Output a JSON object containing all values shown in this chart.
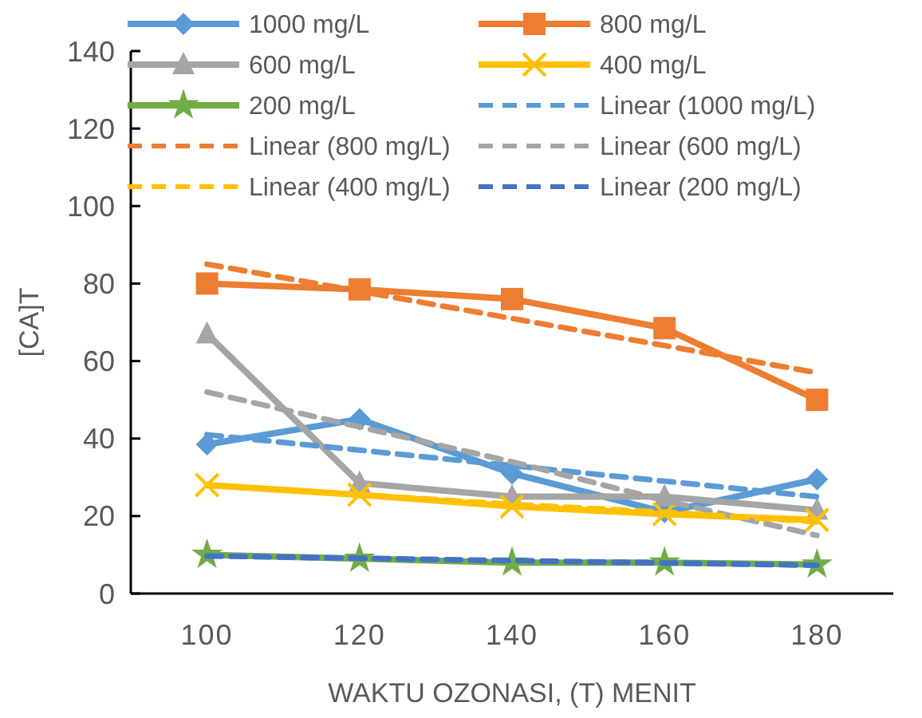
{
  "chart_data": {
    "type": "line",
    "xlabel": "WAKTU OZONASI, (T) MENIT",
    "ylabel": "[CA]T",
    "categories": [
      "100",
      "120",
      "140",
      "160",
      "180"
    ],
    "ylim": [
      0,
      140
    ],
    "yticks": [
      0,
      20,
      40,
      60,
      80,
      100,
      120,
      140
    ],
    "grid": false,
    "legend": "top",
    "series": [
      {
        "name": "1000 mg/L",
        "color": "#5b9bd5",
        "marker": "diamond",
        "line_style": "solid",
        "values": [
          38.5,
          45,
          31,
          21,
          29.5
        ]
      },
      {
        "name": "800 mg/L",
        "color": "#ed7d31",
        "marker": "square",
        "line_style": "solid",
        "values": [
          80,
          78.5,
          76,
          68.5,
          50
        ]
      },
      {
        "name": "600 mg/L",
        "color": "#a5a5a5",
        "marker": "triangle",
        "line_style": "solid",
        "values": [
          67,
          28.5,
          25,
          25,
          21.5
        ]
      },
      {
        "name": "400 mg/L",
        "color": "#ffc000",
        "marker": "cross",
        "line_style": "solid",
        "values": [
          28,
          25.5,
          22.5,
          20.5,
          19
        ]
      },
      {
        "name": "200 mg/L",
        "color": "#70ad47",
        "marker": "star",
        "line_style": "solid",
        "values": [
          10,
          9,
          8,
          8,
          7.5
        ]
      },
      {
        "name": "Linear (1000 mg/L)",
        "color": "#5b9bd5",
        "marker": "none",
        "line_style": "dashed",
        "values": [
          41,
          37,
          33,
          29,
          25
        ]
      },
      {
        "name": "Linear (800 mg/L)",
        "color": "#ed7d31",
        "marker": "none",
        "line_style": "dashed",
        "values": [
          85,
          78,
          71,
          64,
          57
        ]
      },
      {
        "name": "Linear (600 mg/L)",
        "color": "#a5a5a5",
        "marker": "none",
        "line_style": "dashed",
        "values": [
          52,
          43,
          34,
          24,
          15
        ]
      },
      {
        "name": "Linear (400 mg/L)",
        "color": "#ffc000",
        "marker": "none",
        "line_style": "dashed",
        "values": [
          28,
          25.5,
          23,
          21,
          18.5
        ]
      },
      {
        "name": "Linear (200 mg/L)",
        "color": "#4472c4",
        "marker": "none",
        "line_style": "dashed",
        "values": [
          9.7,
          9.1,
          8.5,
          7.9,
          7.3
        ]
      }
    ]
  }
}
